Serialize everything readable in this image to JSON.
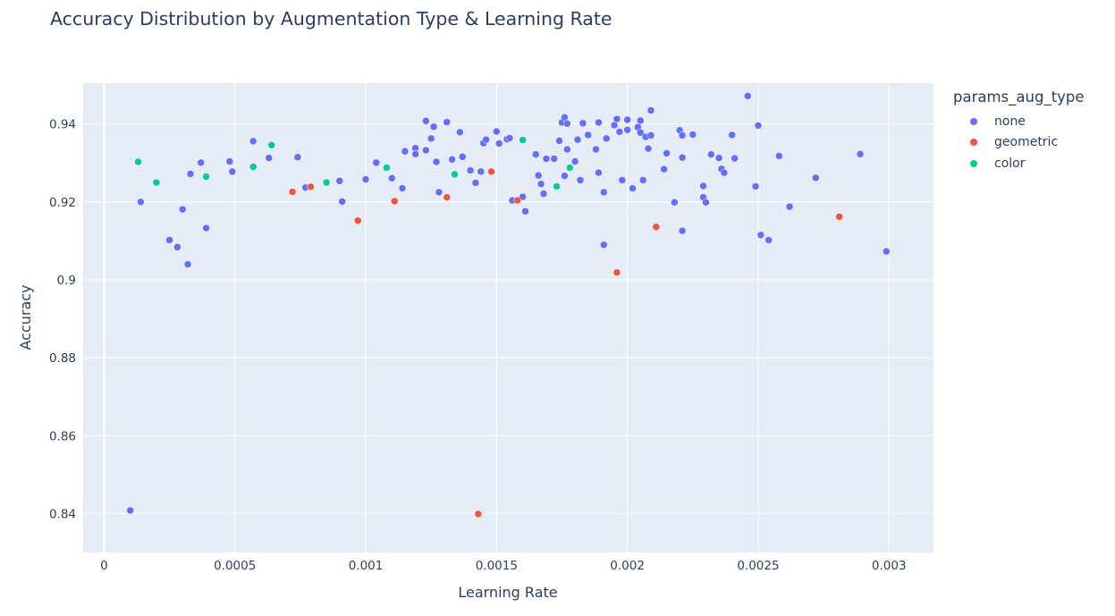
{
  "chart_data": {
    "type": "scatter",
    "title": "Accuracy Distribution by Augmentation Type & Learning Rate",
    "xlabel": "Learning Rate",
    "ylabel": "Accuracy",
    "xlim": [
      -8e-05,
      0.00317
    ],
    "ylim": [
      0.83,
      0.9505
    ],
    "x_ticks": [
      {
        "value": 0,
        "label": "0"
      },
      {
        "value": 0.0005,
        "label": "0.0005"
      },
      {
        "value": 0.001,
        "label": "0.001"
      },
      {
        "value": 0.0015,
        "label": "0.0015"
      },
      {
        "value": 0.002,
        "label": "0.002"
      },
      {
        "value": 0.0025,
        "label": "0.0025"
      },
      {
        "value": 0.003,
        "label": "0.003"
      }
    ],
    "y_ticks": [
      {
        "value": 0.84,
        "label": "0.84"
      },
      {
        "value": 0.86,
        "label": "0.86"
      },
      {
        "value": 0.88,
        "label": "0.88"
      },
      {
        "value": 0.9,
        "label": "0.9"
      },
      {
        "value": 0.92,
        "label": "0.92"
      },
      {
        "value": 0.94,
        "label": "0.94"
      }
    ],
    "grid": true,
    "legend_title": "params_aug_type",
    "legend_position": "right",
    "series": [
      {
        "name": "none",
        "color": "#636efa",
        "points": [
          [
            0.0001,
            0.8408
          ],
          [
            0.00014,
            0.92
          ],
          [
            0.00025,
            0.9102
          ],
          [
            0.00028,
            0.9084
          ],
          [
            0.0003,
            0.9181
          ],
          [
            0.00032,
            0.904
          ],
          [
            0.00033,
            0.9272
          ],
          [
            0.00037,
            0.9301
          ],
          [
            0.00039,
            0.9133
          ],
          [
            0.00048,
            0.9304
          ],
          [
            0.00049,
            0.9278
          ],
          [
            0.00057,
            0.9356
          ],
          [
            0.00063,
            0.9313
          ],
          [
            0.00074,
            0.9315
          ],
          [
            0.00077,
            0.9237
          ],
          [
            0.0009,
            0.9254
          ],
          [
            0.00091,
            0.9201
          ],
          [
            0.001,
            0.9258
          ],
          [
            0.00104,
            0.9301
          ],
          [
            0.0011,
            0.9261
          ],
          [
            0.00114,
            0.9235
          ],
          [
            0.00115,
            0.933
          ],
          [
            0.00119,
            0.9338
          ],
          [
            0.00119,
            0.9323
          ],
          [
            0.00123,
            0.9333
          ],
          [
            0.00123,
            0.9408
          ],
          [
            0.00125,
            0.9363
          ],
          [
            0.00126,
            0.9393
          ],
          [
            0.00127,
            0.9303
          ],
          [
            0.00128,
            0.9225
          ],
          [
            0.00131,
            0.9405
          ],
          [
            0.00133,
            0.9309
          ],
          [
            0.00136,
            0.9379
          ],
          [
            0.00137,
            0.9316
          ],
          [
            0.0014,
            0.9281
          ],
          [
            0.00142,
            0.9249
          ],
          [
            0.00144,
            0.9278
          ],
          [
            0.00145,
            0.9351
          ],
          [
            0.00146,
            0.936
          ],
          [
            0.0015,
            0.9381
          ],
          [
            0.00151,
            0.935
          ],
          [
            0.00154,
            0.9361
          ],
          [
            0.00155,
            0.9364
          ],
          [
            0.00156,
            0.9204
          ],
          [
            0.0016,
            0.9213
          ],
          [
            0.00161,
            0.9176
          ],
          [
            0.00165,
            0.9322
          ],
          [
            0.00166,
            0.9268
          ],
          [
            0.00167,
            0.9246
          ],
          [
            0.00168,
            0.9221
          ],
          [
            0.00169,
            0.9311
          ],
          [
            0.00172,
            0.9311
          ],
          [
            0.00174,
            0.9357
          ],
          [
            0.00175,
            0.9404
          ],
          [
            0.00176,
            0.9417
          ],
          [
            0.00176,
            0.9267
          ],
          [
            0.00177,
            0.9335
          ],
          [
            0.00177,
            0.9401
          ],
          [
            0.0018,
            0.9304
          ],
          [
            0.00181,
            0.936
          ],
          [
            0.00182,
            0.9256
          ],
          [
            0.00183,
            0.9402
          ],
          [
            0.00185,
            0.9372
          ],
          [
            0.00188,
            0.9335
          ],
          [
            0.00189,
            0.9404
          ],
          [
            0.00189,
            0.9275
          ],
          [
            0.00191,
            0.9225
          ],
          [
            0.00191,
            0.909
          ],
          [
            0.00192,
            0.9363
          ],
          [
            0.00195,
            0.9397
          ],
          [
            0.00196,
            0.9413
          ],
          [
            0.00197,
            0.938
          ],
          [
            0.00198,
            0.9256
          ],
          [
            0.002,
            0.9411
          ],
          [
            0.002,
            0.9385
          ],
          [
            0.00202,
            0.9235
          ],
          [
            0.00204,
            0.9392
          ],
          [
            0.00205,
            0.9378
          ],
          [
            0.00205,
            0.9409
          ],
          [
            0.00206,
            0.9256
          ],
          [
            0.00207,
            0.9367
          ],
          [
            0.00208,
            0.9337
          ],
          [
            0.00209,
            0.9371
          ],
          [
            0.00209,
            0.9435
          ],
          [
            0.00214,
            0.9284
          ],
          [
            0.00215,
            0.9325
          ],
          [
            0.00218,
            0.9199
          ],
          [
            0.0022,
            0.9384
          ],
          [
            0.00221,
            0.9371
          ],
          [
            0.00221,
            0.9314
          ],
          [
            0.00221,
            0.9126
          ],
          [
            0.00225,
            0.9373
          ],
          [
            0.00229,
            0.9212
          ],
          [
            0.00229,
            0.9241
          ],
          [
            0.0023,
            0.9199
          ],
          [
            0.00232,
            0.9322
          ],
          [
            0.00235,
            0.9313
          ],
          [
            0.00236,
            0.9285
          ],
          [
            0.00237,
            0.9275
          ],
          [
            0.0024,
            0.9372
          ],
          [
            0.00241,
            0.9312
          ],
          [
            0.00246,
            0.9472
          ],
          [
            0.00249,
            0.924
          ],
          [
            0.0025,
            0.9396
          ],
          [
            0.00251,
            0.9115
          ],
          [
            0.00254,
            0.9102
          ],
          [
            0.00258,
            0.9318
          ],
          [
            0.00262,
            0.9188
          ],
          [
            0.00272,
            0.9262
          ],
          [
            0.00289,
            0.9323
          ],
          [
            0.00299,
            0.9073
          ]
        ]
      },
      {
        "name": "geometric",
        "color": "#ef553b",
        "points": [
          [
            0.00072,
            0.9226
          ],
          [
            0.00079,
            0.9239
          ],
          [
            0.00097,
            0.9152
          ],
          [
            0.00111,
            0.9202
          ],
          [
            0.00131,
            0.9212
          ],
          [
            0.00143,
            0.8399
          ],
          [
            0.00148,
            0.9278
          ],
          [
            0.00158,
            0.9204
          ],
          [
            0.00196,
            0.9019
          ],
          [
            0.00211,
            0.9136
          ],
          [
            0.00281,
            0.9162
          ]
        ]
      },
      {
        "name": "color",
        "color": "#00cc96",
        "points": [
          [
            0.00013,
            0.9303
          ],
          [
            0.0002,
            0.925
          ],
          [
            0.00039,
            0.9265
          ],
          [
            0.00057,
            0.929
          ],
          [
            0.00064,
            0.9346
          ],
          [
            0.00085,
            0.925
          ],
          [
            0.00108,
            0.9288
          ],
          [
            0.00134,
            0.9271
          ],
          [
            0.0016,
            0.9359
          ],
          [
            0.00173,
            0.924
          ],
          [
            0.00178,
            0.9288
          ]
        ]
      }
    ]
  }
}
